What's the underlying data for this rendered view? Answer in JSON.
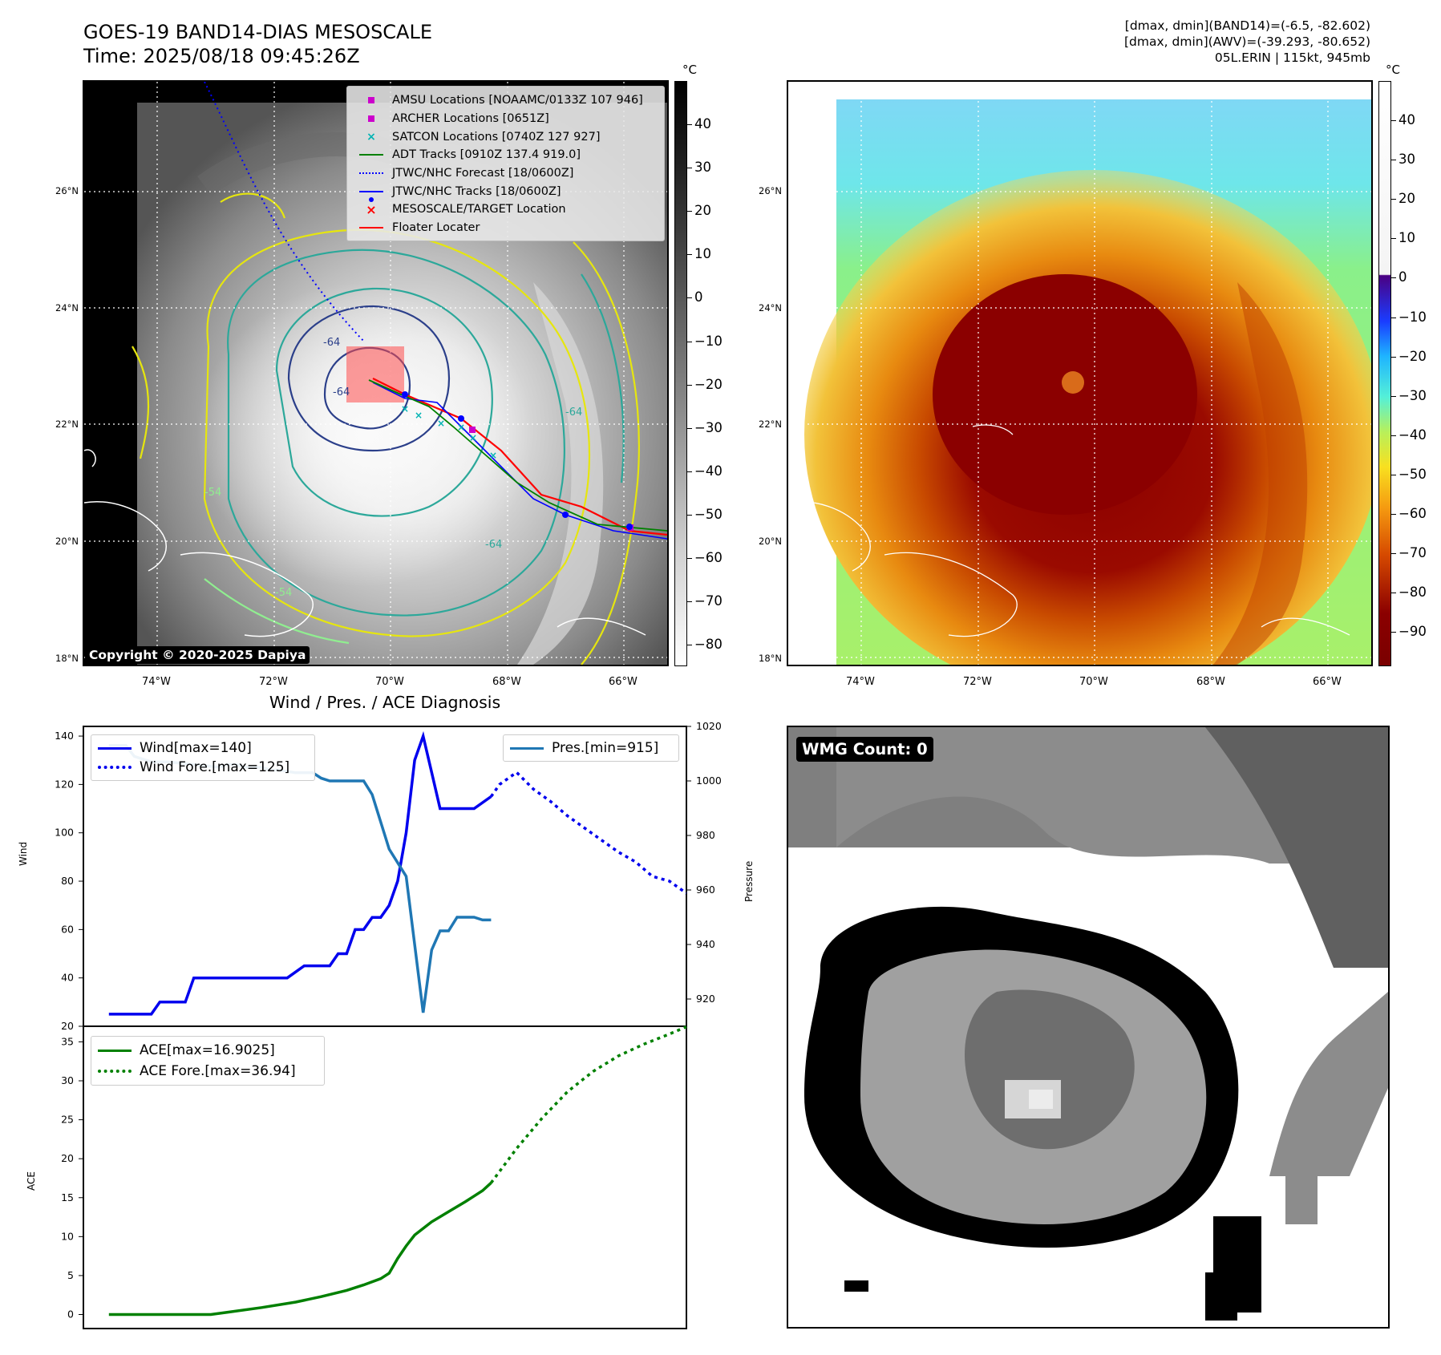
{
  "header": {
    "title_line1": "GOES-19 BAND14-DIAS MESOSCALE",
    "title_line2": "Time: 2025/08/18 09:45:26Z",
    "info_line1": "[dmax, dmin](BAND14)=(-6.5, -82.602)",
    "info_line2": "[dmax, dmin](AWV)=(-39.293, -80.652)",
    "info_line3": "05L.ERIN | 115kt, 945mb"
  },
  "colorbar_unit": "°C",
  "left_colorbar": {
    "ticks": [
      "40",
      "30",
      "20",
      "10",
      "0",
      "−10",
      "−20",
      "−30",
      "−40",
      "−50",
      "−60",
      "−70",
      "−80"
    ]
  },
  "right_colorbar": {
    "ticks": [
      "40",
      "30",
      "20",
      "10",
      "0",
      "−10",
      "−20",
      "−30",
      "−40",
      "−50",
      "−60",
      "−70",
      "−80",
      "−90"
    ]
  },
  "map_axes": {
    "lat_labels": [
      "26°N",
      "24°N",
      "22°N",
      "20°N",
      "18°N"
    ],
    "lon_labels": [
      "74°W",
      "72°W",
      "70°W",
      "68°W",
      "66°W"
    ]
  },
  "map_legend": [
    {
      "label": "AMSU Locations [NOAAMC/0133Z 107 946]",
      "symbol": "square-icon",
      "color": "#cc00cc"
    },
    {
      "label": "ARCHER Locations [0651Z]",
      "symbol": "square-icon",
      "color": "#cc00cc"
    },
    {
      "label": "SATCON Locations [0740Z 127 927]",
      "symbol": "x-icon",
      "color": "#00b3b3"
    },
    {
      "label": "ADT Tracks [0910Z 137.4 919.0]",
      "symbol": "line-icon",
      "color": "#008000"
    },
    {
      "label": "JTWC/NHC Forecast [18/0600Z]",
      "symbol": "dotted-line-icon",
      "color": "#0000ff"
    },
    {
      "label": "JTWC/NHC Tracks [18/0600Z]",
      "symbol": "line-dot-icon",
      "color": "#0000ff"
    },
    {
      "label": "MESOSCALE/TARGET Location",
      "symbol": "x-icon",
      "color": "#ff0000"
    },
    {
      "label": "Floater Locater",
      "symbol": "line-icon",
      "color": "#ff0000"
    }
  ],
  "map_contour_labels": [
    "-64",
    "-64",
    "-64",
    "-54",
    "-54",
    "-64"
  ],
  "copyright": "Copyright © 2020-2025 Dapiya",
  "wmg_badge": "WMG Count: 0",
  "diagnosis": {
    "title": "Wind / Pres. / ACE Diagnosis",
    "wind_ylabel": "Wind",
    "pres_ylabel": "Pressure",
    "ace_ylabel": "ACE",
    "wind_legend": "Wind[max=140]",
    "wind_fore_legend": "Wind Fore.[max=125]",
    "pres_legend": "Pres.[min=915]",
    "ace_legend": "ACE[max=16.9025]",
    "ace_fore_legend": "ACE Fore.[max=36.94]"
  },
  "chart_data": [
    {
      "type": "line",
      "title": "Wind / Pres. / ACE Diagnosis",
      "ylabel": "Wind",
      "ylim": [
        20,
        144
      ],
      "yticks": [
        20,
        40,
        60,
        80,
        100,
        120,
        140
      ],
      "y2label": "Pressure",
      "y2lim": [
        910,
        1020
      ],
      "y2ticks": [
        920,
        940,
        960,
        980,
        1000,
        1020
      ],
      "xlim": [
        -1,
        70
      ],
      "series": [
        {
          "name": "Wind[max=140]",
          "axis": "left",
          "color": "#0000ee",
          "style": "solid",
          "x": [
            2,
            7,
            8,
            11,
            12,
            14,
            15,
            22,
            23,
            25,
            26,
            27,
            28,
            29,
            30,
            31,
            32,
            33,
            34,
            35,
            36,
            37,
            38,
            39,
            40,
            41,
            42,
            44,
            45,
            47
          ],
          "values": [
            25,
            25,
            30,
            30,
            40,
            40,
            40,
            40,
            40,
            45,
            45,
            45,
            45,
            50,
            50,
            60,
            60,
            65,
            65,
            70,
            80,
            100,
            130,
            140,
            125,
            110,
            110,
            110,
            110,
            115
          ]
        },
        {
          "name": "Wind Fore.[max=125]",
          "axis": "left",
          "color": "#0000ee",
          "style": "dotted",
          "x": [
            47,
            48,
            50,
            52,
            54,
            56,
            58,
            60,
            62,
            64,
            66,
            68,
            70
          ],
          "values": [
            115,
            120,
            125,
            118,
            113,
            107,
            102,
            97,
            92,
            88,
            82,
            80,
            75
          ]
        },
        {
          "name": "Pres.[min=915]",
          "axis": "right",
          "color": "#1f77b4",
          "style": "solid",
          "x": [
            2,
            4,
            5,
            6,
            7,
            9,
            12,
            15,
            16,
            17,
            18,
            20,
            21,
            22,
            24,
            26,
            27,
            28,
            29,
            30,
            32,
            33,
            34,
            35,
            37,
            38,
            39,
            40,
            41,
            42,
            43,
            44,
            45,
            46,
            47
          ],
          "values": [
            1013,
            1013,
            1009,
            1008,
            1007,
            1007,
            1006,
            1005,
            1006,
            1006,
            1005,
            1005,
            1004,
            1004,
            1003,
            1003,
            1001,
            1000,
            1000,
            1000,
            1000,
            995,
            985,
            975,
            965,
            940,
            915,
            938,
            945,
            945,
            950,
            950,
            950,
            949,
            949
          ]
        }
      ]
    },
    {
      "type": "line",
      "ylabel": "ACE",
      "ylim": [
        -1.8,
        37
      ],
      "yticks": [
        0,
        5,
        10,
        15,
        20,
        25,
        30,
        35
      ],
      "xlim": [
        -1,
        70
      ],
      "series": [
        {
          "name": "ACE[max=16.9025]",
          "color": "#008000",
          "style": "solid",
          "x": [
            2,
            5,
            10,
            14,
            16,
            20,
            24,
            27,
            30,
            32,
            34,
            35,
            36,
            37,
            38,
            40,
            42,
            44,
            45,
            46,
            47
          ],
          "values": [
            0,
            0,
            0,
            0,
            0.3,
            0.9,
            1.6,
            2.3,
            3.1,
            3.8,
            4.6,
            5.3,
            7.2,
            8.8,
            10.2,
            11.9,
            13.2,
            14.5,
            15.2,
            15.9,
            16.9
          ]
        },
        {
          "name": "ACE Fore.[max=36.94]",
          "color": "#008000",
          "style": "dotted",
          "x": [
            47,
            50,
            53,
            56,
            59,
            62,
            65,
            68,
            70
          ],
          "values": [
            16.9,
            21.3,
            25.2,
            28.6,
            31.2,
            33.2,
            34.7,
            36.0,
            36.94
          ]
        }
      ]
    }
  ]
}
